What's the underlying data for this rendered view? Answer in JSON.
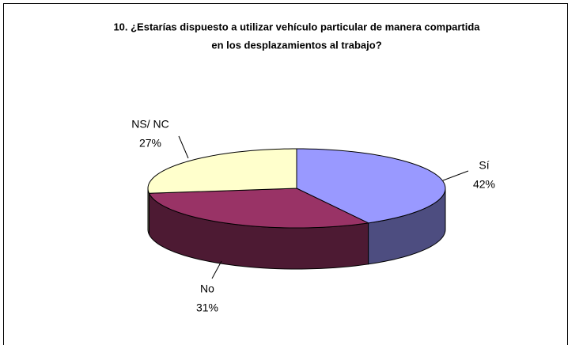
{
  "chart_data": {
    "type": "pie3d",
    "title": [
      "10. ¿Estarías dispuesto a utilizar vehículo particular de manera compartida",
      "en los desplazamientos al trabajo?"
    ],
    "categories": [
      "Sí",
      "No",
      "NS/ NC"
    ],
    "values": [
      42,
      31,
      27
    ],
    "value_labels": [
      "42%",
      "31%",
      "27%"
    ],
    "colors": [
      "#9999ff",
      "#993366",
      "#ffffcc"
    ]
  }
}
